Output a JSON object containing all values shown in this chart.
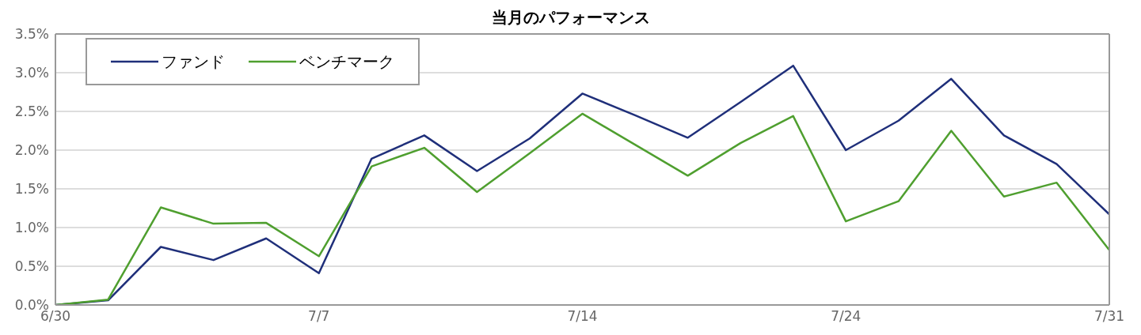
{
  "chart_data": {
    "type": "line",
    "title": "当月のパフォーマンス",
    "categories": [
      "6/30",
      null,
      null,
      null,
      null,
      "7/7",
      null,
      null,
      null,
      null,
      "7/14",
      null,
      null,
      null,
      null,
      "7/24",
      null,
      null,
      null,
      null,
      "7/31"
    ],
    "series": [
      {
        "name": "ファンド",
        "color": "#1f2f7a",
        "values": [
          0.0,
          0.06,
          0.75,
          0.58,
          0.86,
          0.41,
          1.89,
          2.19,
          1.73,
          2.15,
          2.73,
          2.45,
          2.16,
          2.62,
          3.09,
          2.0,
          2.38,
          2.92,
          2.19,
          1.82,
          1.17
        ]
      },
      {
        "name": "ベンチマーク",
        "color": "#4f9f2f",
        "values": [
          0.0,
          0.07,
          1.26,
          1.05,
          1.06,
          0.63,
          1.79,
          2.03,
          1.46,
          1.96,
          2.47,
          2.07,
          1.67,
          2.09,
          2.44,
          1.08,
          1.34,
          2.25,
          1.4,
          1.58,
          0.71
        ]
      }
    ],
    "ylim": [
      0,
      3.5
    ],
    "yticks": [
      {
        "value": 0,
        "label": "0.0%"
      },
      {
        "value": 0.5,
        "label": "0.5%"
      },
      {
        "value": 1,
        "label": "1.0%"
      },
      {
        "value": 1.5,
        "label": "1.5%"
      },
      {
        "value": 2,
        "label": "2.0%"
      },
      {
        "value": 2.5,
        "label": "2.5%"
      },
      {
        "value": 3,
        "label": "3.0%"
      },
      {
        "value": 3.5,
        "label": "3.5%"
      }
    ],
    "grid": "y",
    "legend": "top left",
    "marker": "none",
    "line_style": "solid"
  }
}
